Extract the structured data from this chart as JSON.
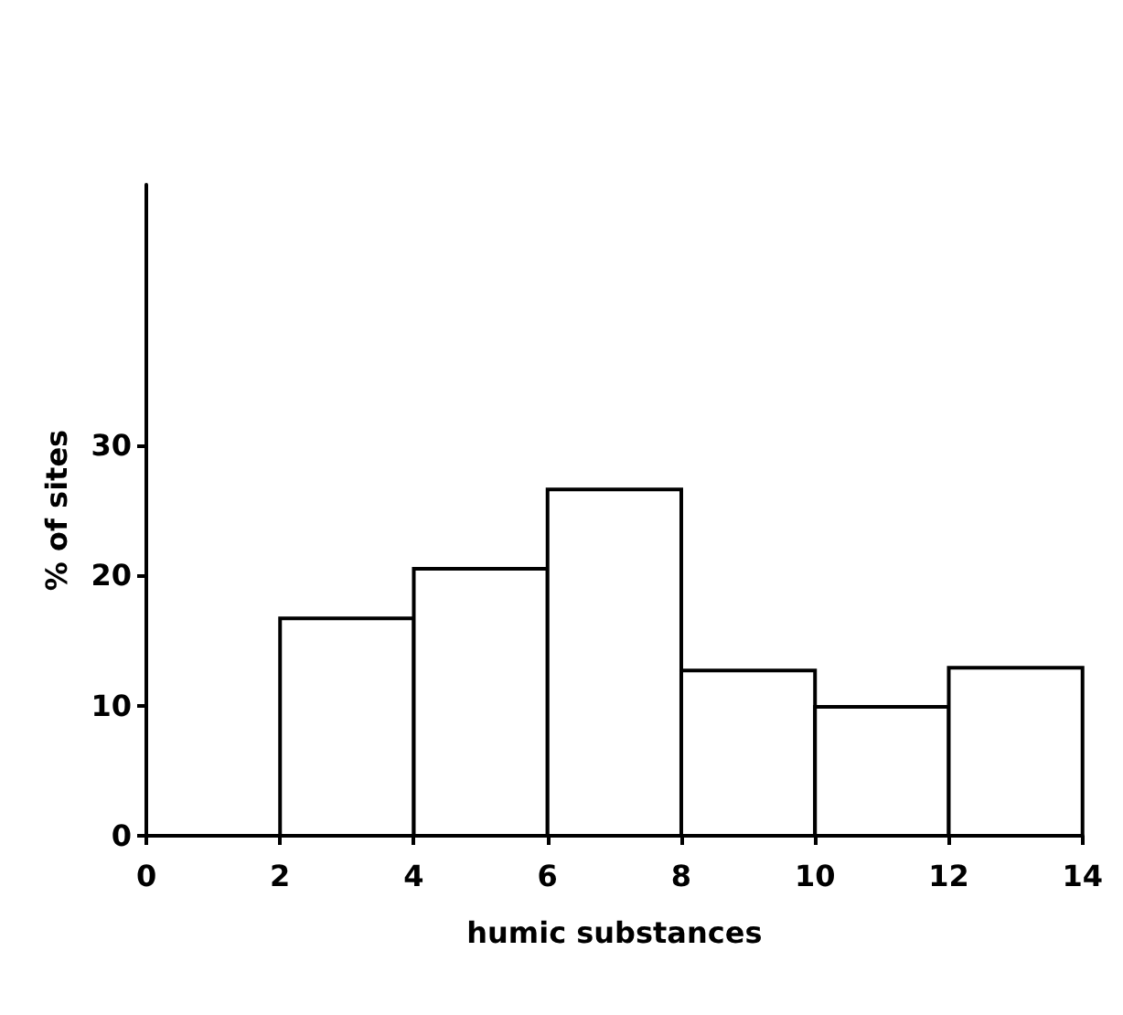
{
  "chart_data": {
    "type": "histogram",
    "xlabel": "humic substances",
    "ylabel": "% of sites",
    "bins": [
      0,
      2,
      4,
      6,
      8,
      10,
      12,
      14
    ],
    "values": [
      0,
      16.7,
      20.5,
      26.6,
      12.7,
      9.9,
      12.9
    ],
    "color": "#ffffff",
    "xlim": [
      0,
      14
    ],
    "xticks": [
      0,
      2,
      4,
      6,
      8,
      10,
      12,
      14
    ],
    "ylim": [
      0,
      50
    ],
    "yticks": [
      0,
      10,
      20,
      30
    ],
    "grid": false
  }
}
